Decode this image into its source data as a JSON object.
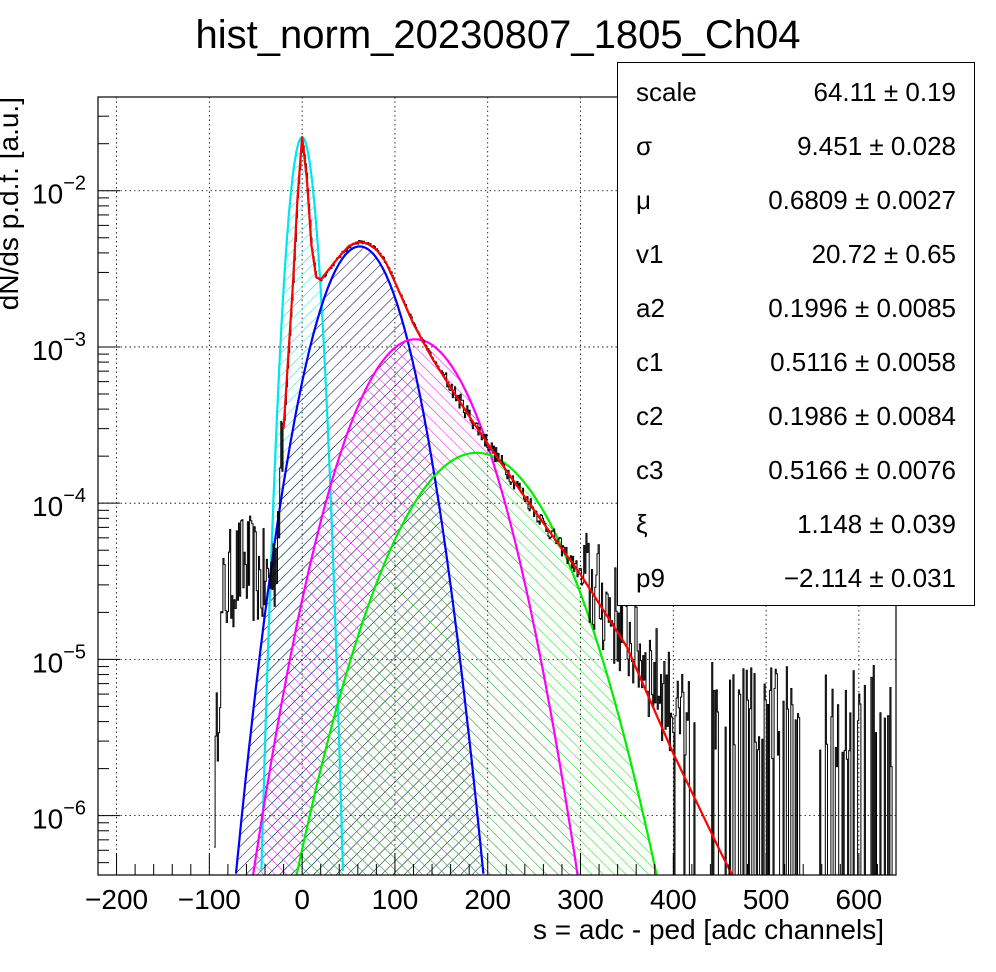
{
  "chart_data": {
    "type": "line",
    "title": "hist_norm_20230807_1805_Ch04",
    "xlabel": "s = adc - ped [adc channels]",
    "ylabel": "dN/ds p.d.f. [a.u.]",
    "xlim": [
      -220,
      640
    ],
    "ylim_log10": [
      -6.38,
      -1.4
    ],
    "yscale": "log",
    "grid": true,
    "x_ticks": [
      "−200",
      "−100",
      "0",
      "100",
      "200",
      "300",
      "400",
      "500",
      "600"
    ],
    "x_tick_values": [
      -200,
      -100,
      0,
      100,
      200,
      300,
      400,
      500,
      600
    ],
    "y_ticks": [
      {
        "base": "10",
        "exp": "−2",
        "value": 0.01
      },
      {
        "base": "10",
        "exp": "−3",
        "value": 0.001
      },
      {
        "base": "10",
        "exp": "−4",
        "value": 0.0001
      },
      {
        "base": "10",
        "exp": "−5",
        "value": 1e-05
      },
      {
        "base": "10",
        "exp": "−6",
        "value": 1e-06
      }
    ],
    "series": [
      {
        "role": "histogram",
        "color": "#000000",
        "x": [
          -95,
          -90,
          -85,
          -80,
          -70,
          -60,
          -50,
          -40,
          -30,
          -20,
          -10,
          -5,
          0,
          5,
          10,
          15,
          20,
          30,
          40,
          50,
          60,
          70,
          80,
          90,
          100,
          120,
          140,
          160,
          180,
          200,
          250,
          300,
          350,
          400,
          450
        ],
        "y": [
          1.2e-06,
          8e-06,
          2.5e-05,
          3e-05,
          3.8e-05,
          4e-05,
          3.5e-05,
          3e-05,
          4e-05,
          0.0003,
          0.0025,
          0.009,
          0.022,
          0.012,
          0.0045,
          0.0028,
          0.0027,
          0.0032,
          0.0038,
          0.0044,
          0.0047,
          0.0046,
          0.0042,
          0.0035,
          0.0026,
          0.0014,
          0.00085,
          0.00055,
          0.00036,
          0.00024,
          9e-05,
          3.5e-05,
          1.5e-05,
          5e-06,
          4.5e-06
        ]
      },
      {
        "role": "total fit",
        "color": "#ff0000",
        "x": [
          -20,
          -10,
          -5,
          0,
          5,
          10,
          15,
          20,
          30,
          40,
          50,
          60,
          70,
          80,
          90,
          100,
          120,
          140,
          160,
          180,
          200,
          250,
          300,
          350,
          400,
          450,
          465
        ],
        "y": [
          0.0003,
          0.0025,
          0.009,
          0.022,
          0.012,
          0.0045,
          0.0028,
          0.0027,
          0.0032,
          0.0038,
          0.0044,
          0.0047,
          0.0046,
          0.0042,
          0.0035,
          0.0026,
          0.0014,
          0.00085,
          0.00055,
          0.00036,
          0.00024,
          9e-05,
          3.5e-05,
          1.2e-05,
          2.5e-06,
          6e-07,
          4e-07
        ]
      },
      {
        "role": "pedestal component",
        "color": "#00e5ee",
        "mu": 0,
        "peak": 0.022,
        "sigma": 9.45
      },
      {
        "role": "1 p.e. component",
        "color": "#0000ff",
        "mu": 62,
        "peak": 0.0044,
        "sigma": 31
      },
      {
        "role": "2 p.e. component",
        "color": "#ff00ff",
        "mu": 122,
        "peak": 0.00112,
        "sigma": 44
      },
      {
        "role": "3 p.e. component",
        "color": "#00ee00",
        "mu": 188,
        "peak": 0.00021,
        "sigma": 55
      }
    ]
  },
  "stats": [
    {
      "name": "scale",
      "value": "64.11",
      "error": "0.19"
    },
    {
      "name": "σ",
      "value": "9.451",
      "error": "0.028"
    },
    {
      "name": "μ",
      "value": "0.6809",
      "error": "0.0027"
    },
    {
      "name": "v1",
      "value": "20.72",
      "error": "0.65"
    },
    {
      "name": "a2",
      "value": "0.1996",
      "error": "0.0085"
    },
    {
      "name": "c1",
      "value": "0.5116",
      "error": "0.0058"
    },
    {
      "name": "c2",
      "value": "0.1986",
      "error": "0.0084"
    },
    {
      "name": "c3",
      "value": "0.5166",
      "error": "0.0076"
    },
    {
      "name": "ξ",
      "value": "1.148",
      "error": "0.039"
    },
    {
      "name": "p9",
      "value": "−2.114",
      "error": "0.031"
    }
  ],
  "pm_symbol": "±"
}
